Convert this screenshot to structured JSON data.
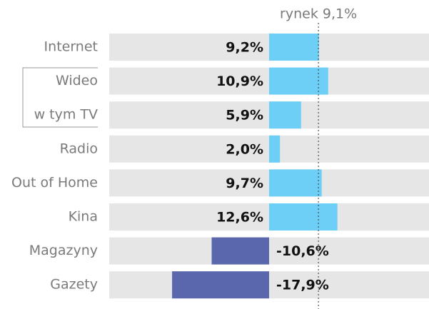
{
  "chart_data": {
    "type": "bar",
    "orientation": "horizontal",
    "categories": [
      "Internet",
      "Wideo",
      "w tym TV",
      "Radio",
      "Out of Home",
      "Kina",
      "Magazyny",
      "Gazety"
    ],
    "values": [
      9.2,
      10.9,
      5.9,
      2.0,
      9.7,
      12.6,
      -10.6,
      -17.9
    ],
    "value_labels": [
      "9,2%",
      "10,9%",
      "5,9%",
      "2,0%",
      "9,7%",
      "12,6%",
      "-10,6%",
      "-17,9%"
    ],
    "positive_color": "#6dcff6",
    "negative_color": "#5b67ad",
    "xlim": [
      -29.5,
      29.5
    ],
    "reference": {
      "value": 9.1,
      "label": "rynek 9,1%"
    }
  }
}
